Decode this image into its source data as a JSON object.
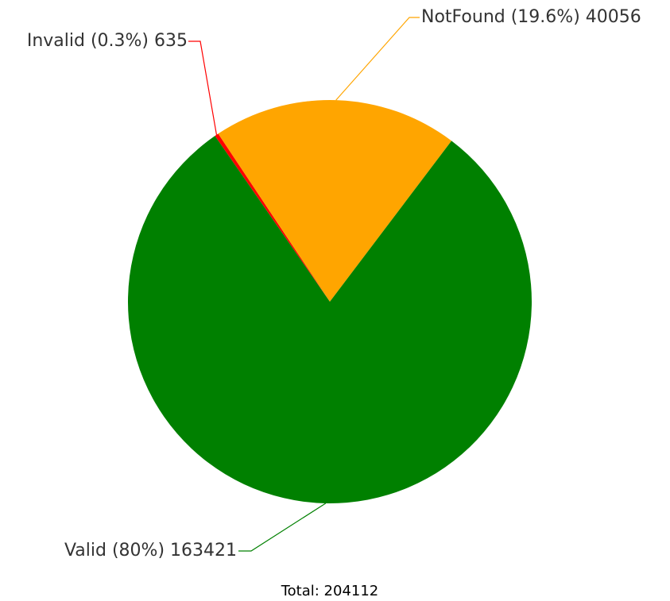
{
  "chart_data": {
    "type": "pie",
    "labels": [
      "Invalid (0.3%) 635",
      "NotFound (19.6%) 40056",
      "Valid (80%) 163421"
    ],
    "values": [
      635,
      40056,
      163421
    ],
    "colors": [
      "#ff0000",
      "#ffa500",
      "#008000"
    ],
    "total_label": "Total: 204112"
  }
}
